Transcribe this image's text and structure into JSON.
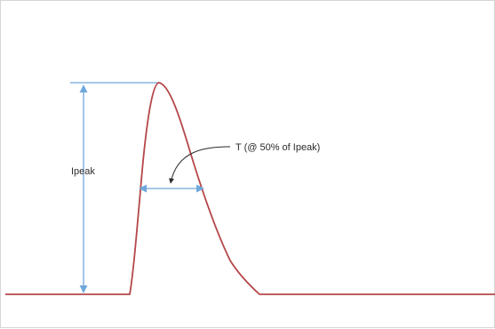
{
  "diagram": {
    "peak_label": "Ipeak",
    "width_label": "T (@ 50% of Ipeak)",
    "colors": {
      "pulse": "#b5474a",
      "dimension": "#6fa8dc",
      "pointer": "#2b2b2b",
      "label": "#2b2b2b",
      "border": "#d6d6d6"
    }
  }
}
